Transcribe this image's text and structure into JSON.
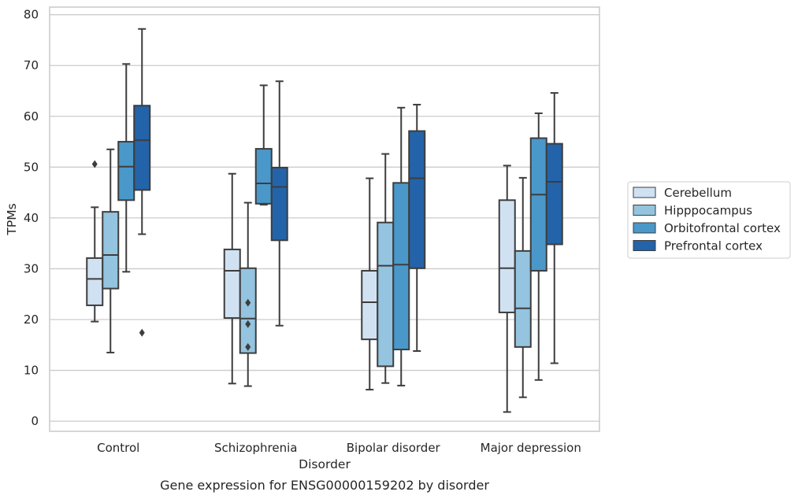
{
  "chart_data": {
    "type": "box",
    "caption": "Gene expression for ENSG00000159202 by disorder",
    "xlabel": "Disorder",
    "ylabel": "TPMs",
    "ylim": [
      -2,
      81.5
    ],
    "yticks": [
      0,
      10,
      20,
      30,
      40,
      50,
      60,
      70,
      80
    ],
    "grid": true,
    "legend_position": "right",
    "categories": [
      "Control",
      "Schizophrenia",
      "Bipolar disorder",
      "Major depression"
    ],
    "series": [
      {
        "name": "Cerebellum",
        "color": "#d0e1f2",
        "boxes": [
          {
            "whisker_low": 19.6,
            "q1": 22.8,
            "median": 28.0,
            "q3": 32.1,
            "whisker_high": 42.1,
            "outliers": [
              50.6
            ]
          },
          {
            "whisker_low": 7.4,
            "q1": 20.3,
            "median": 29.6,
            "q3": 33.8,
            "whisker_high": 48.7,
            "outliers": []
          },
          {
            "whisker_low": 6.2,
            "q1": 16.1,
            "median": 23.4,
            "q3": 29.6,
            "whisker_high": 47.8,
            "outliers": []
          },
          {
            "whisker_low": 1.8,
            "q1": 21.4,
            "median": 30.1,
            "q3": 43.5,
            "whisker_high": 50.3,
            "outliers": []
          }
        ]
      },
      {
        "name": "Hipppocampus",
        "color": "#94c4df",
        "boxes": [
          {
            "whisker_low": 13.5,
            "q1": 26.1,
            "median": 32.7,
            "q3": 41.2,
            "whisker_high": 53.5,
            "outliers": []
          },
          {
            "whisker_low": 6.9,
            "q1": 13.4,
            "median": 20.2,
            "q3": 30.1,
            "whisker_high": 43.0,
            "outliers": [
              23.3,
              19.1,
              14.6
            ]
          },
          {
            "whisker_low": 7.5,
            "q1": 10.8,
            "median": 30.6,
            "q3": 39.1,
            "whisker_high": 52.6,
            "outliers": []
          },
          {
            "whisker_low": 4.7,
            "q1": 14.6,
            "median": 22.2,
            "q3": 33.5,
            "whisker_high": 47.9,
            "outliers": []
          }
        ]
      },
      {
        "name": "Orbitofrontal cortex",
        "color": "#4a98c9",
        "boxes": [
          {
            "whisker_low": 29.4,
            "q1": 43.5,
            "median": 50.1,
            "q3": 55.0,
            "whisker_high": 70.3,
            "outliers": []
          },
          {
            "whisker_low": 42.6,
            "q1": 42.8,
            "median": 46.8,
            "q3": 53.6,
            "whisker_high": 66.1,
            "outliers": []
          },
          {
            "whisker_low": 7.0,
            "q1": 14.1,
            "median": 30.8,
            "q3": 46.9,
            "whisker_high": 61.7,
            "outliers": []
          },
          {
            "whisker_low": 8.1,
            "q1": 29.6,
            "median": 44.6,
            "q3": 55.7,
            "whisker_high": 60.6,
            "outliers": []
          }
        ]
      },
      {
        "name": "Prefrontal cortex",
        "color": "#2363a9",
        "boxes": [
          {
            "whisker_low": 36.8,
            "q1": 45.5,
            "median": 55.3,
            "q3": 62.1,
            "whisker_high": 77.2,
            "outliers": [
              17.4
            ]
          },
          {
            "whisker_low": 18.8,
            "q1": 35.6,
            "median": 46.1,
            "q3": 49.9,
            "whisker_high": 66.9,
            "outliers": []
          },
          {
            "whisker_low": 13.8,
            "q1": 30.1,
            "median": 47.8,
            "q3": 57.1,
            "whisker_high": 62.3,
            "outliers": []
          },
          {
            "whisker_low": 11.4,
            "q1": 34.8,
            "median": 47.1,
            "q3": 54.6,
            "whisker_high": 64.6,
            "outliers": []
          }
        ]
      }
    ]
  }
}
